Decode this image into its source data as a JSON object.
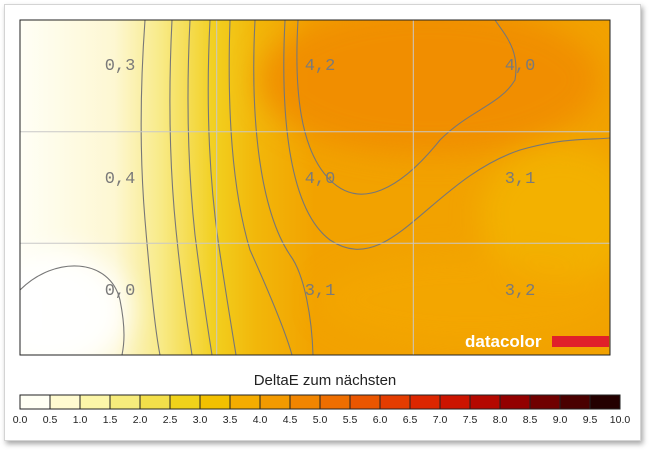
{
  "chart_data": {
    "type": "heatmap",
    "title": "DeltaE zum nächsten",
    "grid_rows": 3,
    "grid_cols": 3,
    "values": [
      [
        "0,3",
        "4,2",
        "4,0"
      ],
      [
        "0,4",
        "4,0",
        "3,1"
      ],
      [
        "0,0",
        "3,1",
        "3,2"
      ]
    ],
    "numeric_values": [
      [
        0.3,
        4.2,
        4.0
      ],
      [
        0.4,
        4.0,
        3.1
      ],
      [
        0.0,
        3.1,
        3.2
      ]
    ],
    "colorbar": {
      "min": 0.0,
      "max": 10.0,
      "ticks": [
        "0.0",
        "0.5",
        "1.0",
        "1.5",
        "2.0",
        "2.5",
        "3.0",
        "3.5",
        "4.0",
        "4.5",
        "5.0",
        "5.5",
        "6.0",
        "6.5",
        "7.0",
        "7.5",
        "8.0",
        "8.5",
        "9.0",
        "9.5",
        "10.0"
      ],
      "colors": [
        "#fffff4",
        "#fffbd0",
        "#fcf6a8",
        "#f7ec7c",
        "#f3df4a",
        "#f0d21a",
        "#f2c000",
        "#f4ac00",
        "#f39a00",
        "#f18500",
        "#ee6e00",
        "#ea5600",
        "#e43c00",
        "#dc2600",
        "#cc1400",
        "#b40800",
        "#930000",
        "#700000",
        "#4a0000",
        "#240000"
      ]
    },
    "grid": true,
    "colors": {
      "gridline": "#c8c8c8",
      "contour": "#777777",
      "cell_label": "#7a7a7a",
      "brand_text": "#ffffff",
      "brand_bar": "#e0202a"
    }
  },
  "brand": {
    "logo_text": "datacolor"
  }
}
